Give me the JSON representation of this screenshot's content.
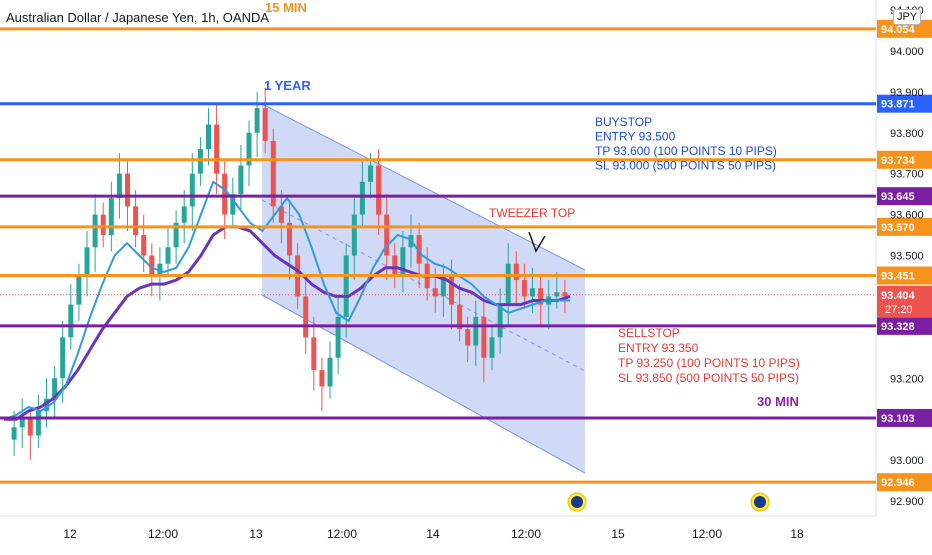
{
  "header": {
    "title": "Australian Dollar / Japanese Yen, 1h, OANDA",
    "currency": "JPY"
  },
  "colors": {
    "orange": "#f7931a",
    "purple": "#7b1fa2",
    "blue": "#2962ff",
    "up": "#26a69a",
    "down": "#ef5350",
    "channel": "#c8d3f5",
    "ema_fast": "#2f9be0",
    "ema_slow": "#6a35b8",
    "current": "#ef5350"
  },
  "chart_data": {
    "type": "candlestick",
    "ylim": [
      92.87,
      94.1
    ],
    "x_ticks": [
      "12",
      "12:00",
      "13",
      "12:00",
      "14",
      "12:00",
      "15",
      "12:00",
      "18"
    ],
    "y_ticks": [
      "94.100",
      "94.000",
      "93.900",
      "93.800",
      "93.700",
      "93.600",
      "93.500",
      "93.200",
      "93.000",
      "92.900"
    ],
    "levels": [
      {
        "value": 94.054,
        "label": "94.054",
        "color": "#f7931a"
      },
      {
        "value": 93.871,
        "label": "93.871",
        "color": "#2962ff"
      },
      {
        "value": 93.734,
        "label": "93.734",
        "color": "#f7931a"
      },
      {
        "value": 93.645,
        "label": "93.645",
        "color": "#7b1fa2"
      },
      {
        "value": 93.57,
        "label": "93.570",
        "color": "#f7931a"
      },
      {
        "value": 93.451,
        "label": "93.451",
        "color": "#f7931a"
      },
      {
        "value": 93.328,
        "label": "93.328",
        "color": "#7b1fa2"
      },
      {
        "value": 93.103,
        "label": "93.103",
        "color": "#7b1fa2"
      },
      {
        "value": 92.946,
        "label": "92.946",
        "color": "#f7931a"
      }
    ],
    "current": {
      "value": 93.404,
      "label": "93.404",
      "countdown": "27:20"
    },
    "annotations": {
      "tf_15": "15 MIN",
      "tf_1y": "1 YEAR",
      "tf_30": "30 MIN",
      "buystop": [
        "BUYSTOP",
        "ENTRY 93.500",
        "TP 93.600 (100 POINTS 10 PIPS)",
        "SL 93.000 (500 POINTS 50 PIPS)"
      ],
      "tweezer": "TWEEZER TOP",
      "sellstop": [
        "SELLSTOP",
        "ENTRY 93.350",
        "TP 93.250 (100 POINTS 10 PIPS)",
        "SL 93.850 (500 POINTS 50 PIPS)"
      ]
    },
    "series": [
      {
        "name": "EMA fast",
        "values": [
          93.1,
          93.11,
          93.13,
          93.12,
          93.14,
          93.18,
          93.26,
          93.35,
          93.43,
          93.5,
          93.53,
          93.5,
          93.47,
          93.46,
          93.47,
          93.52,
          93.6,
          93.68,
          93.66,
          93.62,
          93.58,
          93.56,
          93.6,
          93.64,
          93.6,
          93.52,
          93.43,
          93.36,
          93.34,
          93.4,
          93.47,
          93.52,
          93.55,
          93.54,
          93.5,
          93.48,
          93.47,
          93.45,
          93.43,
          93.4,
          93.38,
          93.36,
          93.37,
          93.38,
          93.39,
          93.39,
          93.39
        ]
      },
      {
        "name": "EMA slow",
        "values": [
          93.1,
          93.1,
          93.12,
          93.13,
          93.15,
          93.18,
          93.22,
          93.27,
          93.32,
          93.36,
          93.4,
          93.42,
          93.43,
          93.43,
          93.44,
          93.46,
          93.5,
          93.55,
          93.57,
          93.57,
          93.56,
          93.53,
          93.5,
          93.48,
          93.46,
          93.43,
          93.41,
          93.4,
          93.4,
          93.42,
          93.45,
          93.47,
          93.47,
          93.46,
          93.45,
          93.45,
          93.44,
          93.42,
          93.41,
          93.39,
          93.38,
          93.38,
          93.38,
          93.39,
          93.39,
          93.39,
          93.4
        ]
      }
    ]
  }
}
